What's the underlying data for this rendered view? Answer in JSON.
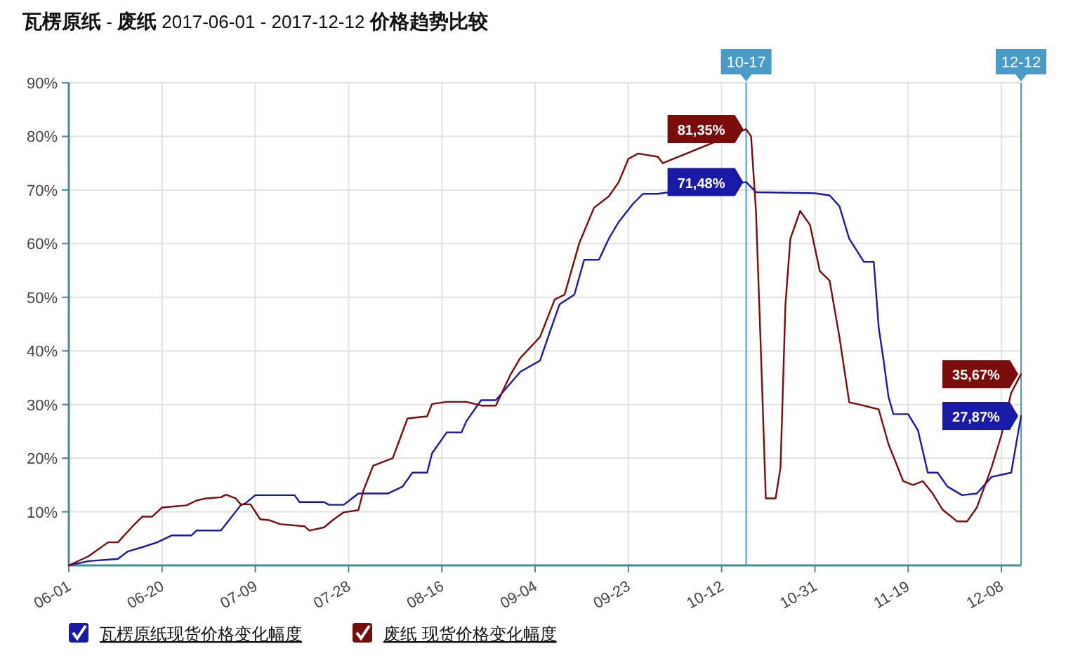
{
  "chart_data": {
    "type": "line",
    "title": "**瓦楞原纸** - **废纸** 2017-06-01 - 2017-12-12 **价格趋势比较**",
    "xlim": [
      "2017-06-01",
      "2017-12-12"
    ],
    "xticks": [
      {
        "value": "2017-06-01",
        "label": "06-01"
      },
      {
        "value": "2017-06-20",
        "label": "06-20"
      },
      {
        "value": "2017-07-09",
        "label": "07-09"
      },
      {
        "value": "2017-07-28",
        "label": "07-28"
      },
      {
        "value": "2017-08-16",
        "label": "08-16"
      },
      {
        "value": "2017-09-04",
        "label": "09-04"
      },
      {
        "value": "2017-09-23",
        "label": "09-23"
      },
      {
        "value": "2017-10-12",
        "label": "10-12"
      },
      {
        "value": "2017-10-31",
        "label": "10-31"
      },
      {
        "value": "2017-11-19",
        "label": "11-19"
      },
      {
        "value": "2017-12-08",
        "label": "12-08"
      }
    ],
    "ylim": [
      0,
      90
    ],
    "yticks": [
      {
        "value": 10,
        "label": "10%"
      },
      {
        "value": 20,
        "label": "20%"
      },
      {
        "value": 30,
        "label": "30%"
      },
      {
        "value": 40,
        "label": "40%"
      },
      {
        "value": 50,
        "label": "50%"
      },
      {
        "value": 60,
        "label": "60%"
      },
      {
        "value": 70,
        "label": "70%"
      },
      {
        "value": 80,
        "label": "80%"
      },
      {
        "value": 90,
        "label": "90%"
      }
    ],
    "grid": true,
    "legend": "bottom",
    "line_style": "solid",
    "series": [
      {
        "name": "瓦楞原纸现货价格变化幅度",
        "color": "#1a1aa8",
        "x": [
          "2017-06-01",
          "2017-06-05",
          "2017-06-11",
          "2017-06-13",
          "2017-06-16",
          "2017-06-19",
          "2017-06-22",
          "2017-06-26",
          "2017-06-27",
          "2017-07-02",
          "2017-07-06",
          "2017-07-07",
          "2017-07-09",
          "2017-07-17",
          "2017-07-18",
          "2017-07-23",
          "2017-07-24",
          "2017-07-27",
          "2017-07-30",
          "2017-08-05",
          "2017-08-08",
          "2017-08-10",
          "2017-08-13",
          "2017-08-14",
          "2017-08-17",
          "2017-08-20",
          "2017-08-21",
          "2017-08-24",
          "2017-08-27",
          "2017-09-01",
          "2017-09-05",
          "2017-09-07",
          "2017-09-09",
          "2017-09-12",
          "2017-09-14",
          "2017-09-17",
          "2017-09-19",
          "2017-09-21",
          "2017-09-24",
          "2017-09-26",
          "2017-09-29",
          "2017-10-17",
          "2017-10-19",
          "2017-10-31",
          "2017-11-03",
          "2017-11-05",
          "2017-11-07",
          "2017-11-10",
          "2017-11-12",
          "2017-11-13",
          "2017-11-14",
          "2017-11-15",
          "2017-11-16",
          "2017-11-19",
          "2017-11-21",
          "2017-11-23",
          "2017-11-25",
          "2017-11-27",
          "2017-11-30",
          "2017-12-03",
          "2017-12-06",
          "2017-12-10",
          "2017-12-12"
        ],
        "values": [
          0,
          0.8,
          1.2,
          2.6,
          3.4,
          4.3,
          5.6,
          5.6,
          6.5,
          6.5,
          11.2,
          11.6,
          13.1,
          13.1,
          11.8,
          11.8,
          11.3,
          11.3,
          13.4,
          13.4,
          14.7,
          17.3,
          17.3,
          20.9,
          24.8,
          24.8,
          26.9,
          30.8,
          30.8,
          36.1,
          38.2,
          43.5,
          48.7,
          50.5,
          57,
          57,
          60.9,
          64,
          67.5,
          69.3,
          69.3,
          71.48,
          69.6,
          69.4,
          69,
          67,
          60.9,
          56.6,
          56.6,
          44.4,
          38.2,
          31.4,
          28.2,
          28.2,
          25.2,
          17.3,
          17.3,
          14.7,
          13.1,
          13.4,
          16.5,
          17.3,
          27.87
        ]
      },
      {
        "name": "废纸 现货价格变化幅度",
        "color": "#7a0c0c",
        "x": [
          "2017-06-01",
          "2017-06-05",
          "2017-06-09",
          "2017-06-11",
          "2017-06-14",
          "2017-06-16",
          "2017-06-18",
          "2017-06-20",
          "2017-06-25",
          "2017-06-27",
          "2017-06-29",
          "2017-07-02",
          "2017-07-03",
          "2017-07-05",
          "2017-07-06",
          "2017-07-08",
          "2017-07-10",
          "2017-07-12",
          "2017-07-14",
          "2017-07-19",
          "2017-07-20",
          "2017-07-23",
          "2017-07-25",
          "2017-07-27",
          "2017-07-30",
          "2017-07-31",
          "2017-08-02",
          "2017-08-06",
          "2017-08-09",
          "2017-08-13",
          "2017-08-14",
          "2017-08-17",
          "2017-08-21",
          "2017-08-24",
          "2017-08-27",
          "2017-08-30",
          "2017-09-01",
          "2017-09-05",
          "2017-09-08",
          "2017-09-10",
          "2017-09-13",
          "2017-09-16",
          "2017-09-19",
          "2017-09-21",
          "2017-09-23",
          "2017-09-25",
          "2017-09-29",
          "2017-09-30",
          "2017-10-17",
          "2017-10-18",
          "2017-10-19",
          "2017-10-20",
          "2017-10-21",
          "2017-10-23",
          "2017-10-24",
          "2017-10-25",
          "2017-10-26",
          "2017-10-28",
          "2017-10-30",
          "2017-11-01",
          "2017-11-03",
          "2017-11-05",
          "2017-11-07",
          "2017-11-09",
          "2017-11-13",
          "2017-11-15",
          "2017-11-18",
          "2017-11-20",
          "2017-11-22",
          "2017-11-24",
          "2017-11-26",
          "2017-11-29",
          "2017-12-01",
          "2017-12-03",
          "2017-12-06",
          "2017-12-08",
          "2017-12-10",
          "2017-12-12"
        ],
        "values": [
          0,
          1.7,
          4.3,
          4.3,
          7.3,
          9.1,
          9.1,
          10.8,
          11.2,
          12.1,
          12.5,
          12.7,
          13.2,
          12.5,
          11.4,
          11.4,
          8.6,
          8.4,
          7.7,
          7.3,
          6.5,
          7.1,
          8.6,
          9.9,
          10.3,
          13.9,
          18.6,
          20,
          27.4,
          27.8,
          30.1,
          30.5,
          30.5,
          29.8,
          29.8,
          35.6,
          38.7,
          42.6,
          49.6,
          50.5,
          60.1,
          66.7,
          68.8,
          71.4,
          75.8,
          76.8,
          76.2,
          75,
          81.35,
          80,
          66,
          40,
          12.5,
          12.5,
          18.3,
          48.7,
          60.9,
          66.1,
          63.5,
          54.9,
          53.1,
          42.6,
          30.4,
          30,
          29.1,
          22.6,
          15.7,
          15,
          15.7,
          13.4,
          10.4,
          8.2,
          8.2,
          10.8,
          18.3,
          24.3,
          32.2,
          35.67
        ]
      }
    ],
    "ref_lines": [
      {
        "axis": "x",
        "value": "2017-10-17",
        "label": "10-17",
        "color": "#4a9cc8"
      },
      {
        "axis": "x",
        "value": "2017-12-12",
        "label": "12-12",
        "color": "#4a9cc8"
      }
    ],
    "annotations": [
      {
        "text": "81,35%",
        "x": "2017-10-17",
        "y": 81.35
      },
      {
        "text": "71,48%",
        "x": "2017-10-17",
        "y": 71.48
      },
      {
        "text": "35,67%",
        "x": "2017-12-12",
        "y": 35.67
      },
      {
        "text": "27,87%",
        "x": "2017-12-12",
        "y": 27.87
      }
    ]
  }
}
